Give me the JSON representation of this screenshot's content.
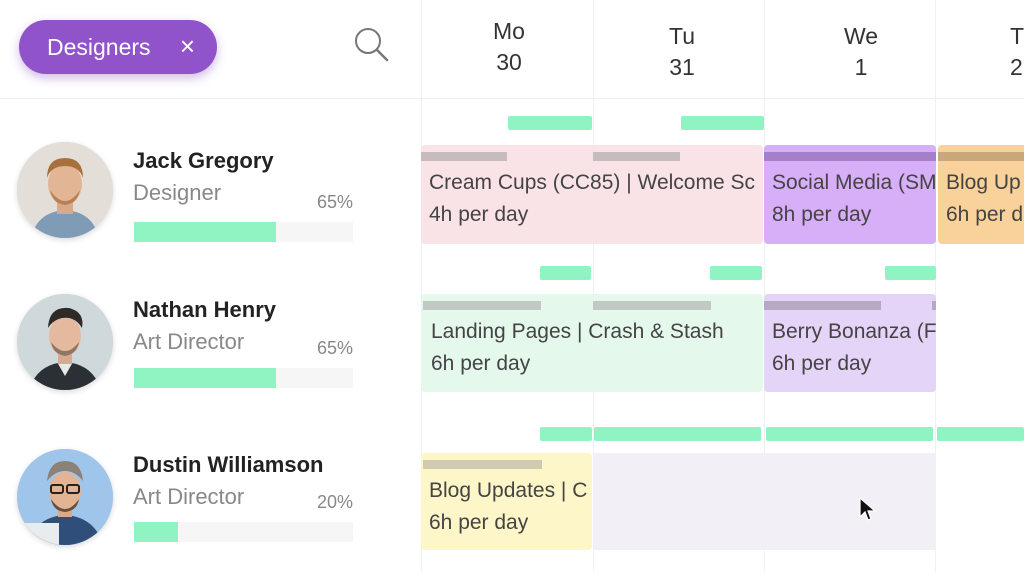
{
  "filter_chip": {
    "label": "Designers",
    "remove": "×"
  },
  "days": [
    {
      "dow": "Mo",
      "date": "30"
    },
    {
      "dow": "Tu",
      "date": "31"
    },
    {
      "dow": "We",
      "date": "1"
    },
    {
      "dow": "T",
      "date": "2"
    }
  ],
  "people": [
    {
      "name": "Jack Gregory",
      "role": "Designer",
      "utilization_label": "65%",
      "utilization": 0.65
    },
    {
      "name": "Nathan Henry",
      "role": "Art Director",
      "utilization_label": "65%",
      "utilization": 0.65
    },
    {
      "name": "Dustin Williamson",
      "role": "Art Director",
      "utilization_label": "20%",
      "utilization": 0.2
    }
  ],
  "tasks": [
    {
      "title": "Cream Cups (CC85) | Welcome Sc",
      "hours": "4h per day"
    },
    {
      "title": "Social Media (SM",
      "hours": "8h per day"
    },
    {
      "title": "Blog Up",
      "hours": "6h per d"
    },
    {
      "title": "Landing Pages | Crash & Stash",
      "hours": "6h per day"
    },
    {
      "title": "Berry Bonanza (F",
      "hours": "6h per day"
    },
    {
      "title": "Blog Updates | C",
      "hours": "6h per day"
    }
  ],
  "colors": {
    "chip": "#9153c9",
    "availability": "#8ff4c1",
    "task_pink": "#f9e3e6",
    "task_purple": "#d7aef8",
    "task_orange": "#f9d19a",
    "task_mint": "#e4f8ec",
    "task_lavender": "#e4d4f8",
    "task_yellow": "#fdf6c8",
    "task_faint_lavender": "#f3eff7"
  }
}
